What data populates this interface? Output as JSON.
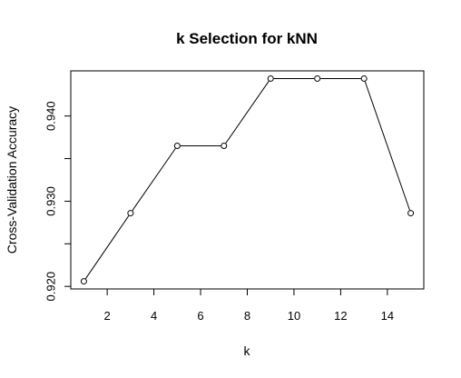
{
  "chart_data": {
    "type": "line",
    "title": "k Selection for kNN",
    "xlabel": "k",
    "ylabel": "Cross-Validation Accuracy",
    "x": [
      1,
      3,
      5,
      7,
      9,
      11,
      13,
      15
    ],
    "y": [
      0.9206,
      0.9286,
      0.9365,
      0.9365,
      0.9444,
      0.9444,
      0.9444,
      0.9286
    ],
    "xlim": [
      0.44,
      15.56
    ],
    "ylim": [
      0.9197,
      0.9453
    ],
    "xticks": [
      2,
      4,
      6,
      8,
      10,
      12,
      14
    ],
    "xtick_labels": [
      "2",
      "4",
      "6",
      "8",
      "10",
      "12",
      "14"
    ],
    "yticks": [
      0.92,
      0.925,
      0.93,
      0.935,
      0.94
    ],
    "ytick_labels": [
      "0.920",
      "",
      "0.930",
      "",
      "0.940"
    ],
    "grid": false,
    "marker": "open-circle",
    "line_color": "#000000"
  }
}
